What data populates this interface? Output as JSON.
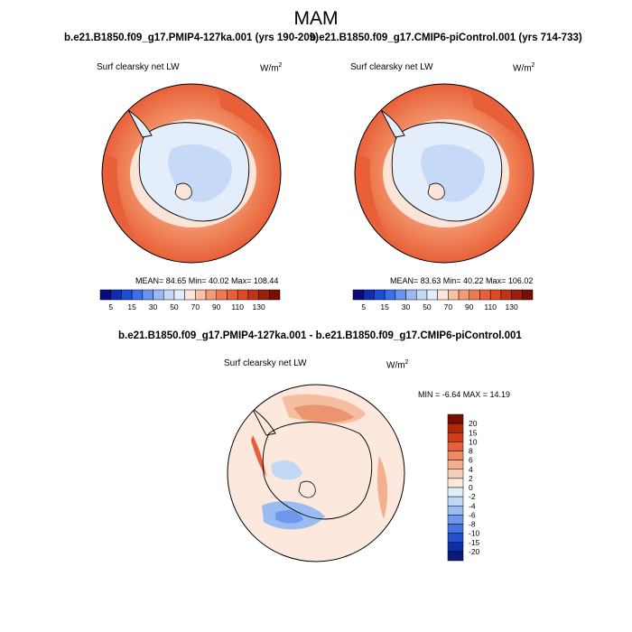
{
  "title": "MAM",
  "panels": [
    {
      "run": "b.e21.B1850.f09_g17.PMIP4-127ka.001 (yrs 190-209)",
      "variable": "Surf clearsky net LW",
      "units": "W/m",
      "units_exp": "2",
      "stats": "MEAN=  84.65   Min=  40.02   Max=  108.44"
    },
    {
      "run": "b.e21.B1850.f09_g17.CMIP6-piControl.001 (yrs 714-733)",
      "variable": "Surf clearsky net LW",
      "units": "W/m",
      "units_exp": "2",
      "stats": "MEAN=  83.63   Min=  40.22   Max=  106.02"
    },
    {
      "run": "b.e21.B1850.f09_g17.PMIP4-127ka.001 - b.e21.B1850.f09_g17.CMIP6-piControl.001",
      "variable": "Surf clearsky net LW",
      "units": "W/m",
      "units_exp": "2",
      "stats": "MIN =  -6.64  MAX =  14.19"
    }
  ],
  "colorbar_abs": {
    "ticks": [
      "5",
      "15",
      "30",
      "50",
      "70",
      "90",
      "110",
      "130"
    ],
    "colors": [
      "#0a0a7a",
      "#0b2fb0",
      "#1a4fd8",
      "#3b6fe8",
      "#6a93ef",
      "#9ab8f4",
      "#c6d9f7",
      "#e4eefb",
      "#fbe4d8",
      "#f7c2a5",
      "#f39a76",
      "#ee7b50",
      "#e8603a",
      "#dd4a24",
      "#c23416",
      "#9c1f08",
      "#7a0d02"
    ]
  },
  "colorbar_diff": {
    "ticks": [
      "20",
      "15",
      "10",
      "8",
      "6",
      "4",
      "2",
      "0",
      "-2",
      "-4",
      "-6",
      "-8",
      "-10",
      "-15",
      "-20"
    ],
    "colors": [
      "#7a0d02",
      "#b02808",
      "#d13d16",
      "#e8603a",
      "#ef8a62",
      "#f4b08e",
      "#f8cfb6",
      "#fce8dc",
      "#e3eefb",
      "#c1d7f6",
      "#9bbcf2",
      "#6f98ec",
      "#4773e2",
      "#2350cc",
      "#0c2fa8",
      "#081a7a"
    ]
  }
}
